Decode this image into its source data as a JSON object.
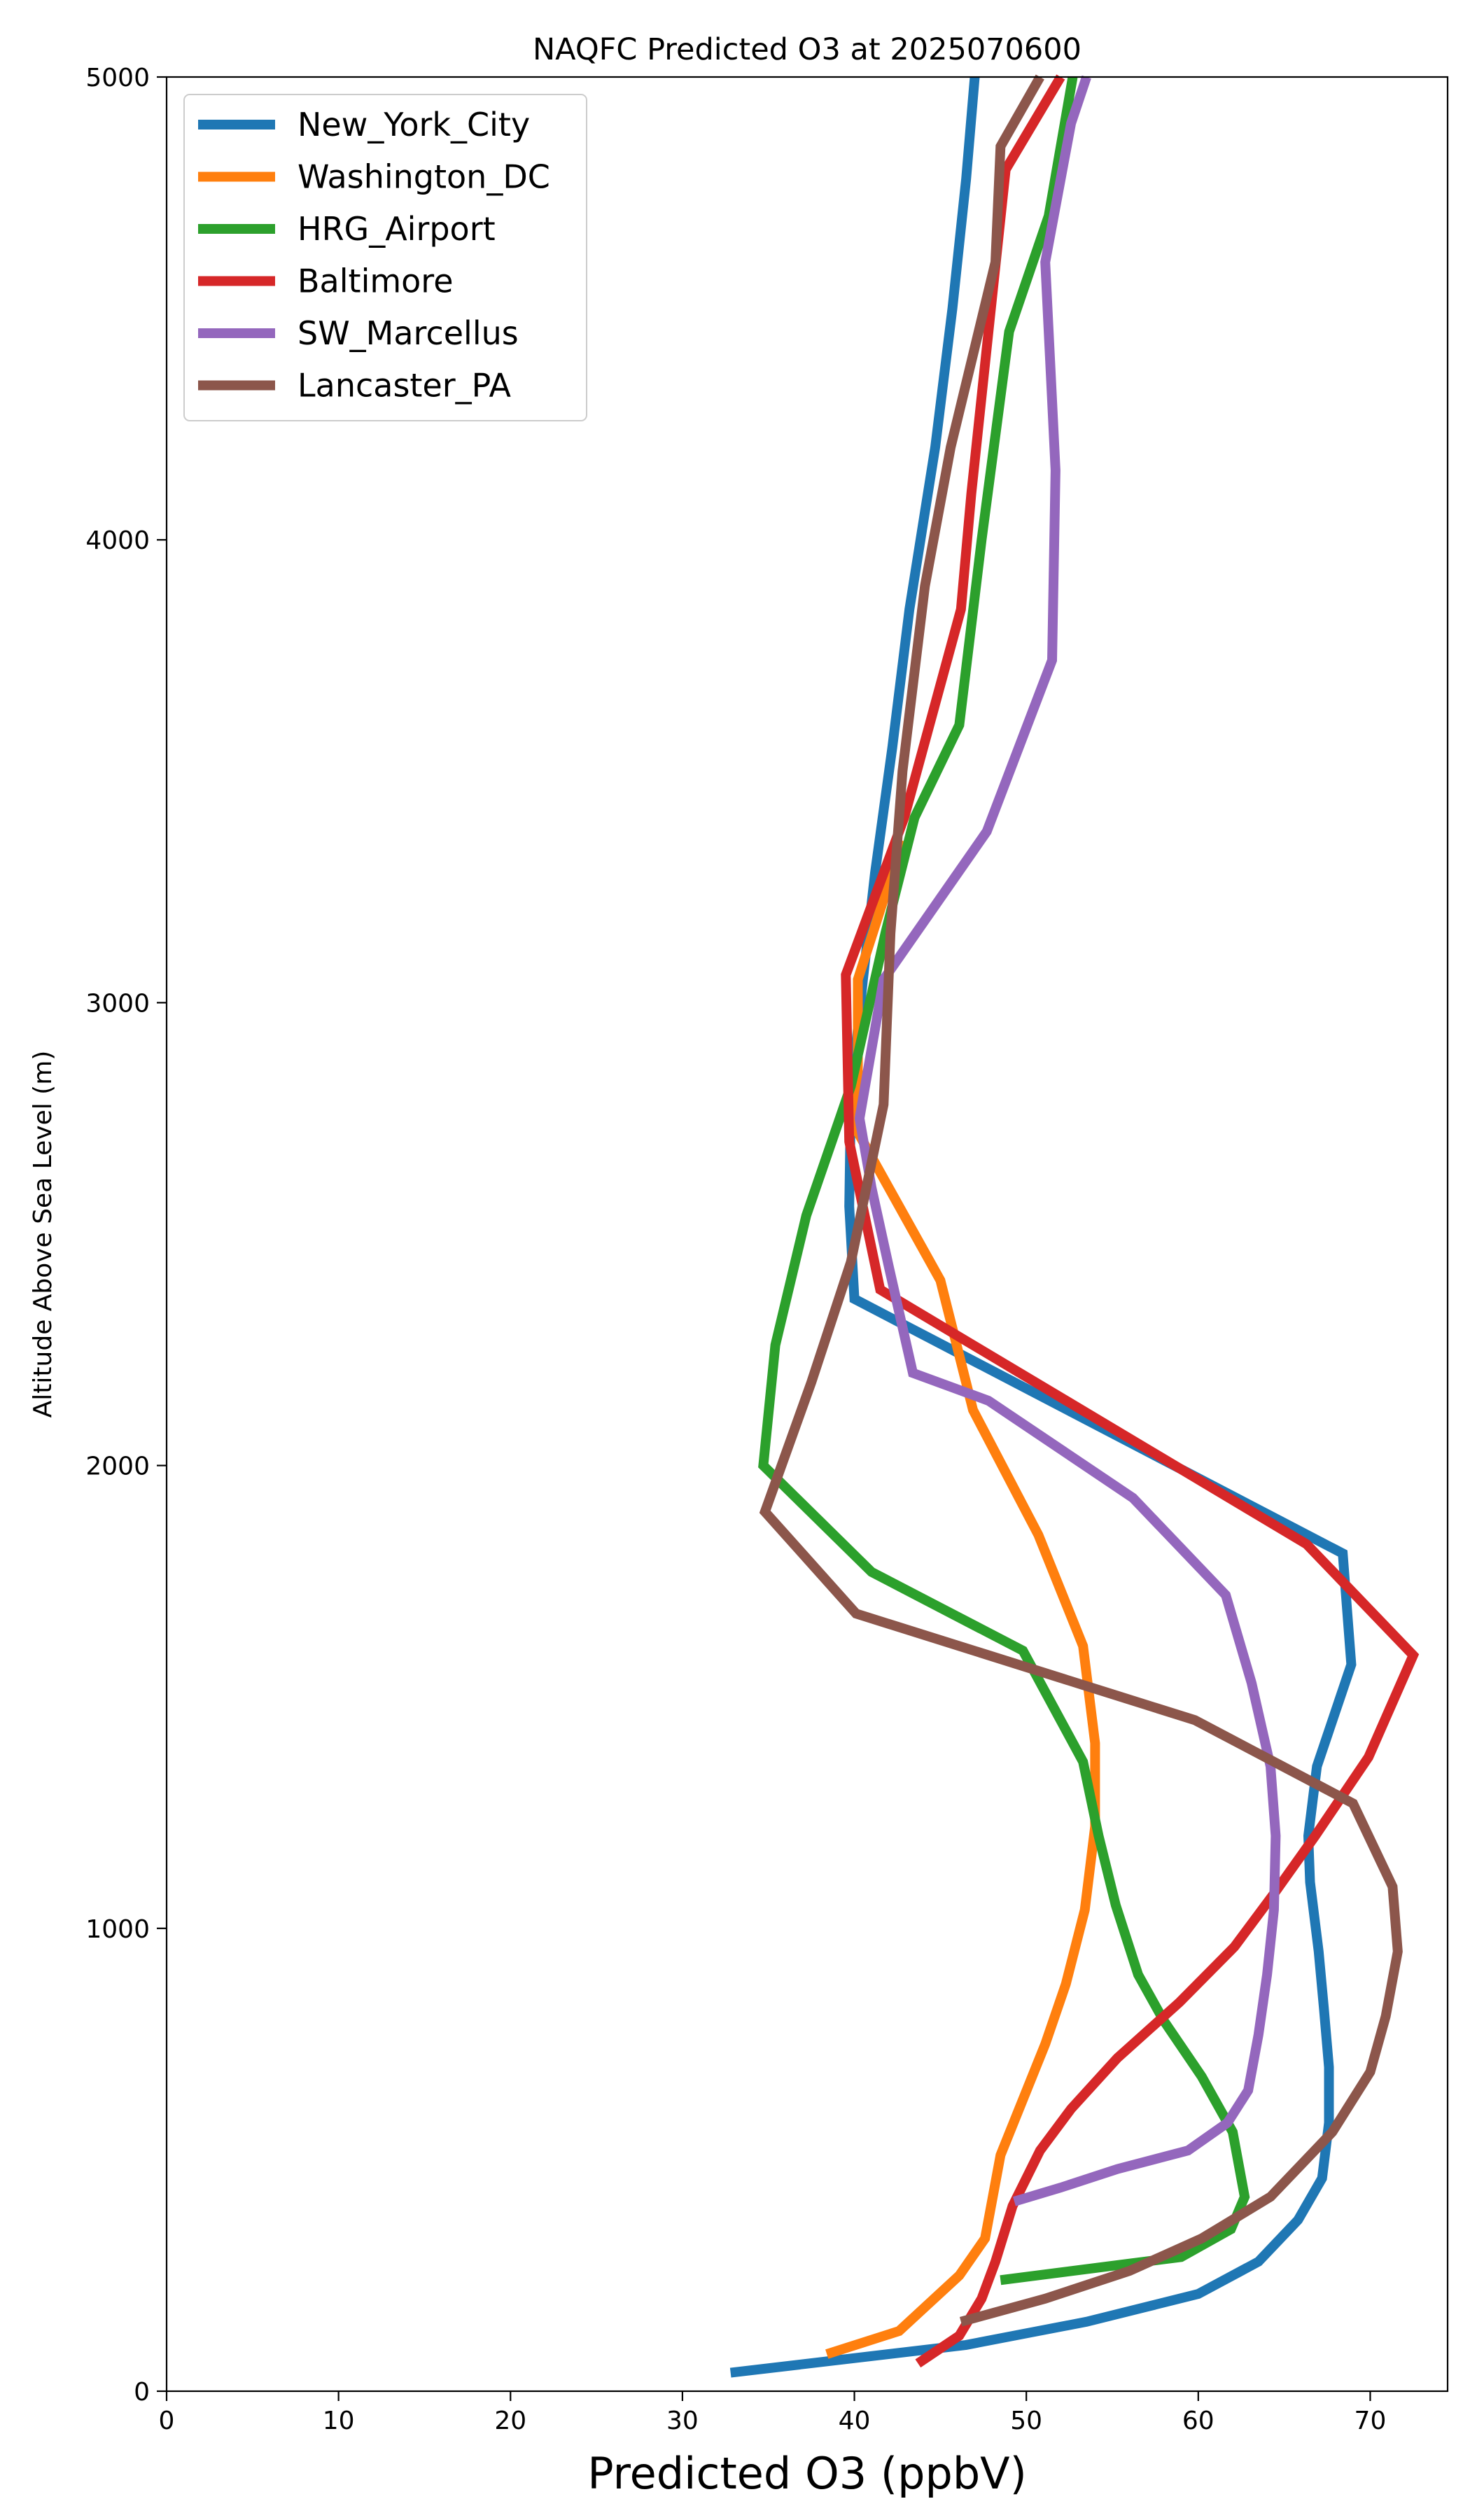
{
  "chart_data": {
    "type": "line",
    "title": "NAQFC Predicted O3 at 2025070600",
    "xlabel": "Predicted O3 (ppbV)",
    "ylabel": "Altitude Above Sea Level (m)",
    "xlim": [
      0,
      74.5
    ],
    "ylim": [
      0,
      5000
    ],
    "xticks": [
      0,
      10,
      20,
      30,
      40,
      50,
      60,
      70
    ],
    "yticks": [
      0,
      1000,
      2000,
      3000,
      4000,
      5000
    ],
    "xtick_labels": [
      "0",
      "10",
      "20",
      "30",
      "40",
      "50",
      "60",
      "70"
    ],
    "ytick_labels": [
      "0",
      "1000",
      "2000",
      "3000",
      "4000",
      "5000"
    ],
    "legend_position": "top-left",
    "grid": false,
    "series": [
      {
        "name": "New_York_City",
        "color": "#1f77b4",
        "points": [
          [
            32.8,
            40
          ],
          [
            46.5,
            100
          ],
          [
            53.5,
            150
          ],
          [
            60,
            210
          ],
          [
            63.5,
            280
          ],
          [
            65.8,
            370
          ],
          [
            67.2,
            460
          ],
          [
            67.6,
            580
          ],
          [
            67.6,
            700
          ],
          [
            67.3,
            830
          ],
          [
            67.0,
            950
          ],
          [
            66.5,
            1100
          ],
          [
            66.4,
            1200
          ],
          [
            66.9,
            1350
          ],
          [
            68.9,
            1570
          ],
          [
            68.4,
            1810
          ],
          [
            40,
            2360
          ],
          [
            39.7,
            2560
          ],
          [
            39.8,
            2800
          ],
          [
            40.5,
            3050
          ],
          [
            41.2,
            3280
          ],
          [
            42.2,
            3550
          ],
          [
            43.2,
            3850
          ],
          [
            44.7,
            4200
          ],
          [
            45.7,
            4500
          ],
          [
            46.5,
            4780
          ],
          [
            47.0,
            5000
          ]
        ]
      },
      {
        "name": "Washington_DC",
        "color": "#ff7f0e",
        "points": [
          [
            38.4,
            80
          ],
          [
            42.6,
            130
          ],
          [
            46.1,
            250
          ],
          [
            47.6,
            330
          ],
          [
            48.5,
            510
          ],
          [
            51.1,
            750
          ],
          [
            52.3,
            880
          ],
          [
            53.4,
            1040
          ],
          [
            54.0,
            1220
          ],
          [
            54.0,
            1400
          ],
          [
            53.3,
            1610
          ],
          [
            50.7,
            1850
          ],
          [
            46.9,
            2120
          ],
          [
            45.0,
            2400
          ],
          [
            40.2,
            2720
          ],
          [
            40.2,
            3050
          ],
          [
            42.8,
            3350
          ]
        ]
      },
      {
        "name": "HRG_Airport",
        "color": "#2ca02c",
        "points": [
          [
            48.5,
            240
          ],
          [
            59.0,
            290
          ],
          [
            61.9,
            350
          ],
          [
            62.7,
            420
          ],
          [
            62.0,
            560
          ],
          [
            60.2,
            680
          ],
          [
            58.0,
            800
          ],
          [
            56.5,
            900
          ],
          [
            55.2,
            1050
          ],
          [
            54.2,
            1200
          ],
          [
            53.3,
            1360
          ],
          [
            49.8,
            1600
          ],
          [
            41.0,
            1770
          ],
          [
            34.7,
            2000
          ],
          [
            35.4,
            2260
          ],
          [
            37.2,
            2540
          ],
          [
            39.8,
            2820
          ],
          [
            41.8,
            3150
          ],
          [
            43.5,
            3400
          ],
          [
            46.1,
            3600
          ],
          [
            47.4,
            4000
          ],
          [
            49.0,
            4450
          ],
          [
            51.3,
            4700
          ],
          [
            52.7,
            5000
          ]
        ]
      },
      {
        "name": "Baltimore",
        "color": "#d62728",
        "points": [
          [
            43.7,
            60
          ],
          [
            46.1,
            120
          ],
          [
            47.4,
            200
          ],
          [
            48.2,
            280
          ],
          [
            49.2,
            400
          ],
          [
            50.8,
            520
          ],
          [
            52.6,
            610
          ],
          [
            55.3,
            720
          ],
          [
            58.9,
            840
          ],
          [
            62.1,
            960
          ],
          [
            64.5,
            1080
          ],
          [
            66.8,
            1200
          ],
          [
            69.9,
            1370
          ],
          [
            72.5,
            1590
          ],
          [
            66.3,
            1830
          ],
          [
            41.5,
            2380
          ],
          [
            39.7,
            2700
          ],
          [
            39.5,
            3060
          ],
          [
            42.9,
            3400
          ],
          [
            46.2,
            3850
          ],
          [
            46.8,
            4100
          ],
          [
            47.8,
            4450
          ],
          [
            48.8,
            4800
          ],
          [
            52.0,
            5000
          ]
        ]
      },
      {
        "name": "SW_Marcellus",
        "color": "#9467bd",
        "points": [
          [
            49.3,
            410
          ],
          [
            52.0,
            440
          ],
          [
            55.3,
            480
          ],
          [
            59.4,
            520
          ],
          [
            61.7,
            580
          ],
          [
            62.9,
            650
          ],
          [
            63.5,
            770
          ],
          [
            64.0,
            900
          ],
          [
            64.4,
            1040
          ],
          [
            64.5,
            1200
          ],
          [
            64.2,
            1350
          ],
          [
            63.1,
            1530
          ],
          [
            61.6,
            1720
          ],
          [
            56.2,
            1930
          ],
          [
            47.8,
            2140
          ],
          [
            43.4,
            2200
          ],
          [
            42.0,
            2430
          ],
          [
            41.0,
            2600
          ],
          [
            40.3,
            2750
          ],
          [
            41.7,
            3050
          ],
          [
            47.7,
            3370
          ],
          [
            51.5,
            3740
          ],
          [
            51.7,
            4150
          ],
          [
            51.1,
            4600
          ],
          [
            52.6,
            4900
          ],
          [
            53.5,
            5000
          ]
        ]
      },
      {
        "name": "Lancaster_PA",
        "color": "#8c564b",
        "points": [
          [
            46.2,
            150
          ],
          [
            51.1,
            200
          ],
          [
            56.0,
            260
          ],
          [
            60.2,
            330
          ],
          [
            64.2,
            420
          ],
          [
            67.8,
            560
          ],
          [
            70.0,
            690
          ],
          [
            70.9,
            810
          ],
          [
            71.6,
            950
          ],
          [
            71.3,
            1090
          ],
          [
            69.0,
            1270
          ],
          [
            59.8,
            1450
          ],
          [
            40.1,
            1680
          ],
          [
            34.8,
            1900
          ],
          [
            37.5,
            2180
          ],
          [
            39.8,
            2440
          ],
          [
            41.7,
            2780
          ],
          [
            42.1,
            3150
          ],
          [
            42.8,
            3500
          ],
          [
            44.1,
            3900
          ],
          [
            45.6,
            4200
          ],
          [
            48.2,
            4600
          ],
          [
            48.5,
            4850
          ],
          [
            50.8,
            5000
          ]
        ]
      }
    ]
  }
}
